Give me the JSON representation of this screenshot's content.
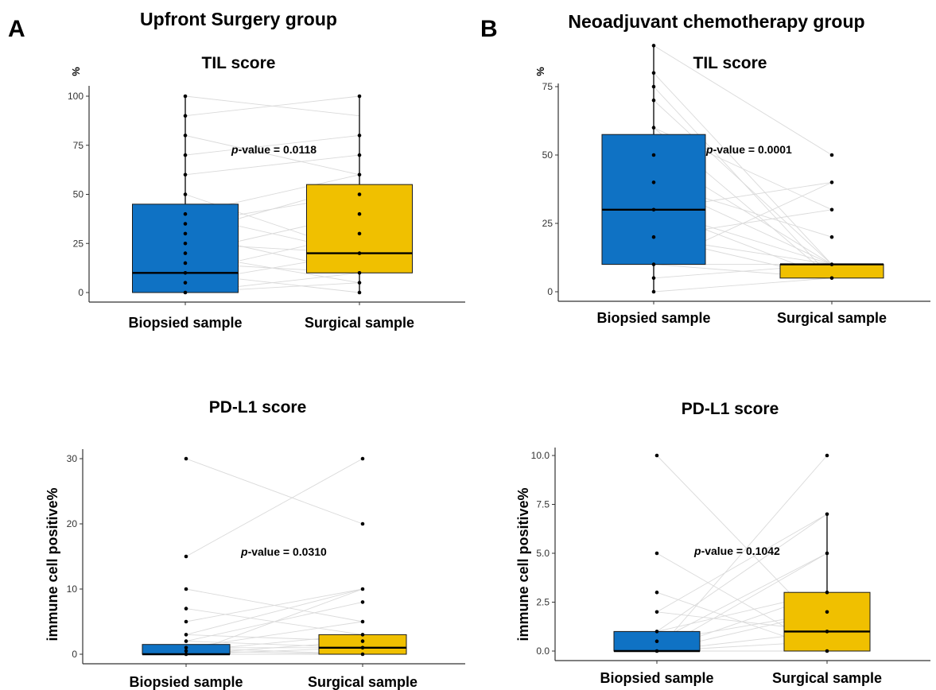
{
  "panels": [
    {
      "letter": "A",
      "title": "Upfront Surgery group"
    },
    {
      "letter": "B",
      "title": "Neoadjuvant chemotherapy group"
    }
  ],
  "colors": {
    "biopsied": "#0f72c4",
    "surgical": "#f0c000",
    "pair_line": "#dadada",
    "point": "#000000"
  },
  "chart_data": [
    {
      "type": "box",
      "panel": "A",
      "title": "TIL score",
      "ylabel": "%",
      "ylim": [
        0,
        100
      ],
      "yticks": [
        0,
        25,
        50,
        75,
        100
      ],
      "ytick_labels": [
        "0",
        "25",
        "50",
        "75",
        "100"
      ],
      "categories": [
        "Biopsied sample",
        "Surgical sample"
      ],
      "p_value": {
        "prefix": "p",
        "text": "-value = 0.0118"
      },
      "boxes": [
        {
          "min": 0,
          "q1": 0,
          "median": 10,
          "q3": 45,
          "max": 100
        },
        {
          "min": 0,
          "q1": 10,
          "median": 20,
          "q3": 55,
          "max": 100
        }
      ],
      "points": [
        [
          0,
          5,
          10,
          15,
          20,
          25,
          30,
          35,
          40,
          50,
          60,
          70,
          80,
          90,
          100
        ],
        [
          0,
          5,
          10,
          20,
          30,
          40,
          50,
          60,
          70,
          80,
          100
        ]
      ],
      "pairs": [
        [
          0,
          5
        ],
        [
          0,
          10
        ],
        [
          5,
          20
        ],
        [
          10,
          0
        ],
        [
          10,
          30
        ],
        [
          15,
          10
        ],
        [
          20,
          40
        ],
        [
          25,
          20
        ],
        [
          30,
          10
        ],
        [
          35,
          50
        ],
        [
          40,
          20
        ],
        [
          50,
          20
        ],
        [
          60,
          70
        ],
        [
          70,
          80
        ],
        [
          80,
          60
        ],
        [
          90,
          100
        ],
        [
          100,
          90
        ],
        [
          30,
          55
        ],
        [
          20,
          5
        ],
        [
          40,
          60
        ]
      ]
    },
    {
      "type": "box",
      "panel": "B",
      "title": "TIL score",
      "ylabel": "%",
      "ylim": [
        0,
        90
      ],
      "yticks": [
        0,
        25,
        50,
        75
      ],
      "ytick_labels": [
        "0",
        "25",
        "50",
        "75"
      ],
      "categories": [
        "Biopsied sample",
        "Surgical sample"
      ],
      "p_value": {
        "prefix": "p",
        "text": "-value = 0.0001"
      },
      "boxes": [
        {
          "min": 0,
          "q1": 10,
          "median": 30,
          "q3": 57.5,
          "max": 90
        },
        {
          "min": 5,
          "q1": 5,
          "median": 10,
          "q3": 10,
          "max": 10
        }
      ],
      "points": [
        [
          0,
          5,
          10,
          20,
          30,
          40,
          50,
          60,
          70,
          75,
          80,
          90
        ],
        [
          5,
          10,
          20,
          30,
          40,
          50
        ]
      ],
      "pairs": [
        [
          0,
          5
        ],
        [
          5,
          10
        ],
        [
          10,
          5
        ],
        [
          10,
          10
        ],
        [
          20,
          5
        ],
        [
          20,
          10
        ],
        [
          30,
          10
        ],
        [
          30,
          40
        ],
        [
          40,
          20
        ],
        [
          50,
          10
        ],
        [
          60,
          30
        ],
        [
          70,
          10
        ],
        [
          75,
          5
        ],
        [
          80,
          10
        ],
        [
          90,
          50
        ],
        [
          30,
          5
        ],
        [
          20,
          30
        ],
        [
          10,
          40
        ],
        [
          40,
          10
        ],
        [
          60,
          5
        ]
      ]
    },
    {
      "type": "box",
      "panel": "A",
      "title": "PD-L1 score",
      "ylabel": "immune cell positive%",
      "ylim": [
        0,
        30
      ],
      "yticks": [
        0,
        10,
        20,
        30
      ],
      "ytick_labels": [
        "0",
        "10",
        "20",
        "30"
      ],
      "categories": [
        "Biopsied sample",
        "Surgical sample"
      ],
      "p_value": {
        "prefix": "p",
        "text": "-value = 0.0310"
      },
      "boxes": [
        {
          "min": 0,
          "q1": 0,
          "median": 0,
          "q3": 1.5,
          "max": 1.5
        },
        {
          "min": 0,
          "q1": 0,
          "median": 1,
          "q3": 3,
          "max": 3
        }
      ],
      "points": [
        [
          0,
          0.5,
          1,
          2,
          3,
          5,
          7,
          10,
          15,
          30
        ],
        [
          0,
          1,
          2,
          3,
          5,
          8,
          10,
          20,
          30
        ]
      ],
      "pairs": [
        [
          0,
          0
        ],
        [
          0,
          1
        ],
        [
          0,
          2
        ],
        [
          0.5,
          3
        ],
        [
          1,
          5
        ],
        [
          2,
          8
        ],
        [
          3,
          10
        ],
        [
          5,
          10
        ],
        [
          7,
          3
        ],
        [
          10,
          5
        ],
        [
          15,
          30
        ],
        [
          30,
          20
        ],
        [
          1,
          0
        ],
        [
          0,
          10
        ],
        [
          2,
          1
        ],
        [
          0.5,
          0
        ],
        [
          3,
          2
        ],
        [
          1,
          1
        ]
      ]
    },
    {
      "type": "box",
      "panel": "B",
      "title": "PD-L1 score",
      "ylabel": "immune cell positive%",
      "ylim": [
        0,
        10
      ],
      "yticks": [
        0,
        2.5,
        5,
        7.5,
        10
      ],
      "ytick_labels": [
        "0.0",
        "2.5",
        "5.0",
        "7.5",
        "10.0"
      ],
      "categories": [
        "Biopsied sample",
        "Surgical sample"
      ],
      "p_value": {
        "prefix": "p",
        "text": "-value = 0.1042"
      },
      "boxes": [
        {
          "min": 0,
          "q1": 0,
          "median": 0,
          "q3": 1,
          "max": 1
        },
        {
          "min": 0,
          "q1": 0,
          "median": 1,
          "q3": 3,
          "max": 7
        }
      ],
      "points": [
        [
          0,
          0.5,
          1,
          2,
          3,
          5,
          10
        ],
        [
          0,
          1,
          2,
          3,
          5,
          7,
          10
        ]
      ],
      "pairs": [
        [
          0,
          0
        ],
        [
          0,
          1
        ],
        [
          0,
          3
        ],
        [
          0,
          5
        ],
        [
          0,
          10
        ],
        [
          0.5,
          2
        ],
        [
          1,
          7
        ],
        [
          2,
          1
        ],
        [
          3,
          0
        ],
        [
          5,
          0
        ],
        [
          10,
          1
        ],
        [
          0,
          2
        ],
        [
          1,
          3
        ],
        [
          0,
          0.5
        ],
        [
          0.5,
          5
        ],
        [
          2,
          7
        ]
      ]
    }
  ]
}
